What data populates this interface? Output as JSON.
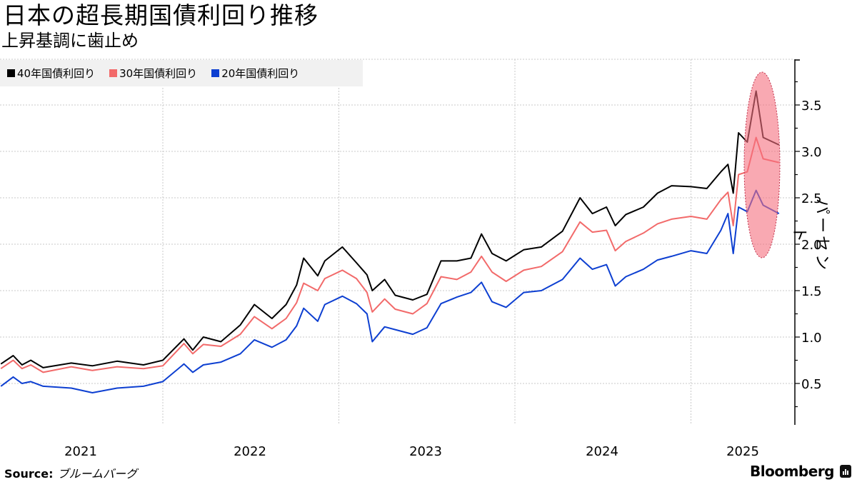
{
  "header": {
    "title": "日本の超長期国債利回り推移",
    "subtitle": "上昇基調に歯止め"
  },
  "legend": [
    {
      "label": "40年国債利回り",
      "color": "#000000"
    },
    {
      "label": "30年国債利回り",
      "color": "#f26a6a"
    },
    {
      "label": "20年国債利回り",
      "color": "#0d3fd1"
    }
  ],
  "axis": {
    "ylabel": "パーセント",
    "yticks": [
      "0.5",
      "1.0",
      "1.5",
      "2.0",
      "2.5",
      "3.0",
      "3.5"
    ],
    "xticks": [
      "2021",
      "2022",
      "2023",
      "2024",
      "2025"
    ]
  },
  "footer": {
    "source_label": "Source:",
    "source_value": "ブルームバーグ",
    "brand": "Bloomberg"
  },
  "highlight": {
    "color": "#f5707f",
    "opacity": 0.6,
    "description": "ellipse over Apr–Jun 2025 spike"
  },
  "chart_data": {
    "type": "line",
    "title": "日本の超長期国債利回り推移",
    "subtitle": "上昇基調に歯止め",
    "xlabel": "",
    "ylabel": "パーセント",
    "ylim": [
      0.0,
      3.95
    ],
    "yticks": [
      0.5,
      1.0,
      1.5,
      2.0,
      2.5,
      3.0,
      3.5
    ],
    "xticks": [
      "2021",
      "2022",
      "2023",
      "2024",
      "2025"
    ],
    "grid": true,
    "legend_position": "top-left",
    "y_axis_side": "right",
    "x": [
      2021.08,
      2021.15,
      2021.2,
      2021.25,
      2021.32,
      2021.48,
      2021.6,
      2021.74,
      2021.89,
      2022.0,
      2022.12,
      2022.17,
      2022.23,
      2022.33,
      2022.44,
      2022.52,
      2022.62,
      2022.7,
      2022.76,
      2022.8,
      2022.88,
      2022.92,
      2023.02,
      2023.1,
      2023.16,
      2023.19,
      2023.26,
      2023.32,
      2023.42,
      2023.5,
      2023.58,
      2023.67,
      2023.75,
      2023.81,
      2023.87,
      2023.95,
      2024.05,
      2024.15,
      2024.27,
      2024.37,
      2024.44,
      2024.52,
      2024.57,
      2024.63,
      2024.73,
      2024.81,
      2024.89,
      2025.0,
      2025.09,
      2025.17,
      2025.21,
      2025.24,
      2025.27,
      2025.32,
      2025.37,
      2025.41,
      2025.5
    ],
    "series": [
      {
        "name": "40年国債利回り",
        "color": "#000000",
        "values": [
          0.71,
          0.8,
          0.7,
          0.75,
          0.67,
          0.72,
          0.69,
          0.74,
          0.7,
          0.75,
          0.98,
          0.86,
          1.0,
          0.95,
          1.13,
          1.35,
          1.2,
          1.35,
          1.56,
          1.85,
          1.66,
          1.82,
          1.97,
          1.8,
          1.67,
          1.5,
          1.62,
          1.45,
          1.4,
          1.46,
          1.82,
          1.82,
          1.85,
          2.11,
          1.9,
          1.82,
          1.94,
          1.97,
          2.14,
          2.5,
          2.33,
          2.4,
          2.2,
          2.32,
          2.4,
          2.55,
          2.63,
          2.62,
          2.6,
          2.78,
          2.86,
          2.55,
          3.2,
          3.1,
          3.65,
          3.15,
          3.07
        ]
      },
      {
        "name": "30年国債利回り",
        "color": "#f26a6a",
        "values": [
          0.66,
          0.75,
          0.66,
          0.7,
          0.62,
          0.68,
          0.64,
          0.68,
          0.66,
          0.69,
          0.93,
          0.82,
          0.92,
          0.9,
          1.03,
          1.22,
          1.09,
          1.2,
          1.37,
          1.58,
          1.5,
          1.63,
          1.72,
          1.63,
          1.48,
          1.27,
          1.41,
          1.3,
          1.25,
          1.36,
          1.65,
          1.62,
          1.7,
          1.87,
          1.7,
          1.6,
          1.72,
          1.76,
          1.92,
          2.24,
          2.13,
          2.15,
          1.93,
          2.03,
          2.12,
          2.22,
          2.27,
          2.3,
          2.27,
          2.48,
          2.56,
          2.2,
          2.75,
          2.78,
          3.15,
          2.92,
          2.88
        ]
      },
      {
        "name": "20年国債利回り",
        "color": "#0d3fd1",
        "values": [
          0.47,
          0.57,
          0.5,
          0.52,
          0.47,
          0.45,
          0.4,
          0.45,
          0.47,
          0.52,
          0.71,
          0.62,
          0.7,
          0.73,
          0.82,
          0.97,
          0.89,
          0.97,
          1.12,
          1.31,
          1.17,
          1.35,
          1.44,
          1.36,
          1.25,
          0.95,
          1.11,
          1.08,
          1.03,
          1.1,
          1.36,
          1.43,
          1.48,
          1.59,
          1.38,
          1.32,
          1.48,
          1.5,
          1.62,
          1.85,
          1.73,
          1.78,
          1.55,
          1.65,
          1.73,
          1.83,
          1.87,
          1.93,
          1.9,
          2.15,
          2.33,
          1.9,
          2.4,
          2.35,
          2.58,
          2.42,
          2.33
        ]
      }
    ]
  }
}
